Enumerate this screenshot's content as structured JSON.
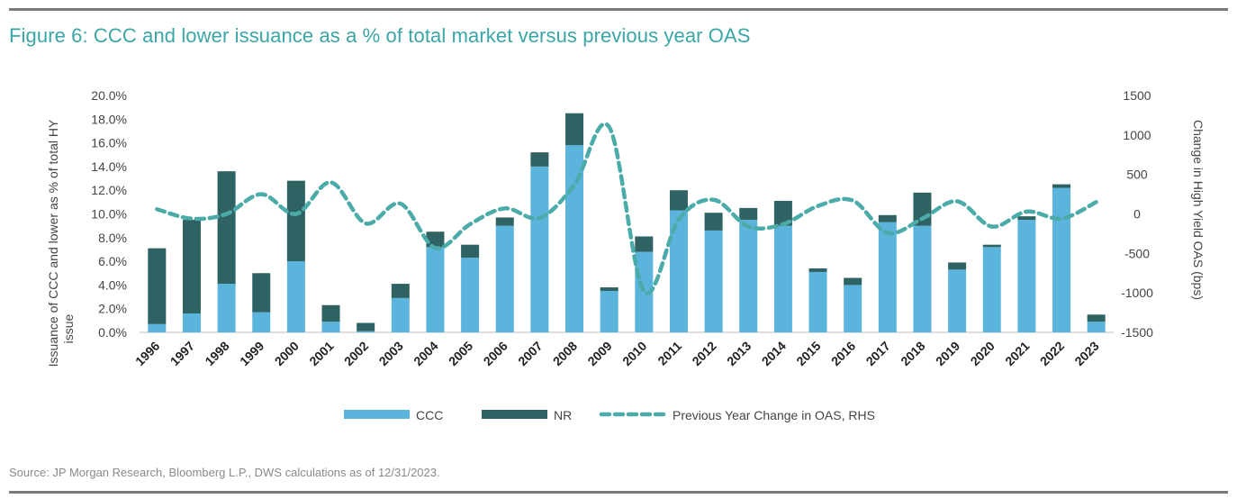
{
  "title": "Figure 6: CCC and lower issuance as a % of total market versus previous year OAS",
  "source": "Source: JP Morgan Research, Bloomberg L.P., DWS calculations as of 12/31/2023.",
  "colors": {
    "ccc": "#5ab4dc",
    "nr": "#2f6262",
    "oas": "#4aaba9",
    "title": "#3aa6a6"
  },
  "chart_data": {
    "type": "bar",
    "stacked": true,
    "categories": [
      "1996",
      "1997",
      "1998",
      "1999",
      "2000",
      "2001",
      "2002",
      "2003",
      "2004",
      "2005",
      "2006",
      "2007",
      "2008",
      "2009",
      "2010",
      "2011",
      "2012",
      "2013",
      "2014",
      "2015",
      "2016",
      "2017",
      "2018",
      "2019",
      "2020",
      "2021",
      "2022",
      "2023"
    ],
    "series": [
      {
        "name": "CCC",
        "axis": "left",
        "values": [
          0.7,
          1.6,
          4.1,
          1.7,
          6.0,
          0.9,
          0.1,
          2.9,
          7.2,
          6.3,
          9.0,
          14.0,
          15.8,
          3.5,
          6.8,
          10.3,
          8.6,
          9.5,
          9.0,
          5.1,
          4.0,
          9.3,
          9.0,
          5.3,
          7.2,
          9.5,
          12.2,
          0.9
        ]
      },
      {
        "name": "NR",
        "axis": "left",
        "values": [
          6.4,
          7.9,
          9.5,
          3.3,
          6.8,
          1.4,
          0.7,
          1.2,
          1.3,
          1.1,
          0.7,
          1.2,
          2.7,
          0.3,
          1.3,
          1.7,
          1.5,
          1.0,
          2.1,
          0.3,
          0.6,
          0.6,
          2.8,
          0.6,
          0.2,
          0.3,
          0.3,
          0.6
        ]
      },
      {
        "name": "Previous Year Change in OAS, RHS",
        "type": "line",
        "style": "dashed",
        "axis": "right",
        "values": [
          60,
          -60,
          0,
          250,
          0,
          400,
          -120,
          130,
          -430,
          -130,
          70,
          -50,
          370,
          1100,
          -980,
          -70,
          180,
          -160,
          -130,
          100,
          170,
          -240,
          -60,
          160,
          -160,
          30,
          -60,
          150
        ]
      }
    ],
    "y_left": {
      "label": "Issuance of CCC and lower as % of total HY issue",
      "min": 0,
      "max": 20,
      "ticks": [
        "0.0%",
        "2.0%",
        "4.0%",
        "6.0%",
        "8.0%",
        "10.0%",
        "12.0%",
        "14.0%",
        "16.0%",
        "18.0%",
        "20.0%"
      ]
    },
    "y_right": {
      "label": "Change in High Yield OAS (bps)",
      "min": -1500,
      "max": 1500,
      "ticks": [
        "-1500",
        "-1000",
        "-500",
        "0",
        "500",
        "1000",
        "1500"
      ]
    },
    "legend": {
      "position": "bottom",
      "items": [
        "CCC",
        "NR",
        "Previous Year Change in OAS, RHS"
      ]
    },
    "grid": false
  }
}
